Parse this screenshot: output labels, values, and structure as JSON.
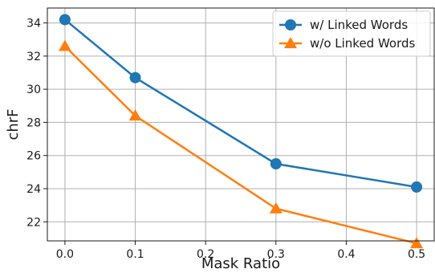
{
  "chart_data": {
    "type": "line",
    "title": "",
    "xlabel": "Mask Ratio",
    "ylabel": "chrF",
    "x": [
      0.0,
      0.1,
      0.3,
      0.5
    ],
    "xticks": [
      "0.0",
      "0.1",
      "0.2",
      "0.3",
      "0.4",
      "0.5"
    ],
    "yticks": [
      "22",
      "24",
      "26",
      "28",
      "30",
      "32",
      "34"
    ],
    "xlim": [
      -0.025,
      0.525
    ],
    "ylim": [
      20.85,
      34.9
    ],
    "grid": true,
    "legend_position": "top-right",
    "series": [
      {
        "name": "w/ Linked Words",
        "values": [
          34.2,
          30.7,
          25.5,
          24.1
        ],
        "color": "#1f77b4",
        "marker": "circle"
      },
      {
        "name": "w/o Linked Words",
        "values": [
          32.6,
          28.4,
          22.8,
          20.7
        ],
        "color": "#ff7f0e",
        "marker": "triangle"
      }
    ]
  }
}
